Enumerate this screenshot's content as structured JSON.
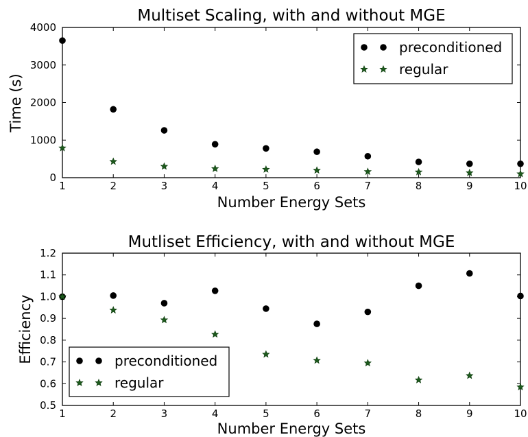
{
  "colors": {
    "preconditioned": "#000000",
    "regular": "#1d5a1d",
    "axes": "#000000",
    "background": "#ffffff"
  },
  "chart_data": [
    {
      "type": "scatter",
      "title": "Multiset Scaling, with and without MGE",
      "xlabel": "Number Energy Sets",
      "ylabel": "Time (s)",
      "xlim": [
        1,
        10
      ],
      "ylim": [
        0,
        4000
      ],
      "x_ticks": [
        "1",
        "2",
        "3",
        "4",
        "5",
        "6",
        "7",
        "8",
        "9",
        "10"
      ],
      "y_ticks": [
        "0",
        "1000",
        "2000",
        "3000",
        "4000"
      ],
      "grid": false,
      "legend_position": "top-right",
      "x": [
        1,
        2,
        3,
        4,
        5,
        6,
        7,
        8,
        9,
        10
      ],
      "series": [
        {
          "name": "preconditioned",
          "marker": "circle",
          "values": [
            3650,
            1820,
            1260,
            890,
            780,
            690,
            570,
            420,
            370,
            370
          ]
        },
        {
          "name": "regular",
          "marker": "star",
          "values": [
            790,
            430,
            300,
            240,
            220,
            195,
            160,
            150,
            130,
            100
          ]
        }
      ]
    },
    {
      "type": "scatter",
      "title": "Mutliset Efficiency, with and without MGE",
      "xlabel": "Number Energy Sets",
      "ylabel": "Efficiency",
      "xlim": [
        1,
        10
      ],
      "ylim": [
        0.5,
        1.2
      ],
      "x_ticks": [
        "1",
        "2",
        "3",
        "4",
        "5",
        "6",
        "7",
        "8",
        "9",
        "10"
      ],
      "y_ticks": [
        "0.5",
        "0.6",
        "0.7",
        "0.8",
        "0.9",
        "1.0",
        "1.1",
        "1.2"
      ],
      "grid": false,
      "legend_position": "bottom-left",
      "x": [
        1,
        2,
        3,
        4,
        5,
        6,
        7,
        8,
        9,
        10
      ],
      "series": [
        {
          "name": "preconditioned",
          "marker": "circle",
          "values": [
            1.0,
            1.005,
            0.97,
            1.027,
            0.945,
            0.875,
            0.93,
            1.05,
            1.107,
            1.003
          ]
        },
        {
          "name": "regular",
          "marker": "star",
          "values": [
            1.0,
            0.938,
            0.893,
            0.827,
            0.735,
            0.707,
            0.695,
            0.617,
            0.637,
            0.585
          ]
        }
      ]
    }
  ]
}
